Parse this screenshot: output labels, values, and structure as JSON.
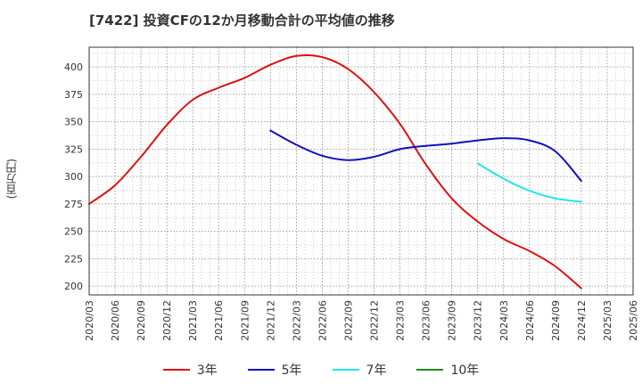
{
  "title": "[7422]  投資CFの12か月移動合計の平均値の推移",
  "y_unit": "(百万円)",
  "chart_data": {
    "type": "line",
    "title": "[7422]  投資CFの12か月移動合計の平均値の推移",
    "ylabel": "(百万円)",
    "xlabel": "",
    "ylim": [
      192,
      418
    ],
    "yticks": [
      200,
      225,
      250,
      275,
      300,
      325,
      350,
      375,
      400
    ],
    "x_ticks": [
      "2020/03",
      "2020/06",
      "2020/09",
      "2020/12",
      "2021/03",
      "2021/06",
      "2021/09",
      "2021/12",
      "2022/03",
      "2022/06",
      "2022/09",
      "2022/12",
      "2023/03",
      "2023/06",
      "2023/09",
      "2023/12",
      "2024/03",
      "2024/06",
      "2024/09",
      "2024/12",
      "2025/03",
      "2025/06"
    ],
    "grid": true,
    "legend_position": "bottom",
    "series": [
      {
        "name": "3年",
        "color": "#dd1111",
        "x": [
          "2020/03",
          "2020/06",
          "2020/09",
          "2020/12",
          "2021/03",
          "2021/06",
          "2021/09",
          "2021/12",
          "2022/03",
          "2022/06",
          "2022/09",
          "2022/12",
          "2023/03",
          "2023/06",
          "2023/09",
          "2023/12",
          "2024/03",
          "2024/06",
          "2024/09",
          "2024/12"
        ],
        "values": [
          275,
          292,
          318,
          347,
          370,
          381,
          390,
          402,
          410,
          409,
          398,
          377,
          348,
          311,
          280,
          259,
          243,
          232,
          218,
          198
        ]
      },
      {
        "name": "5年",
        "color": "#1111bb",
        "x": [
          "2021/12",
          "2022/03",
          "2022/06",
          "2022/09",
          "2022/12",
          "2023/03",
          "2023/06",
          "2023/09",
          "2023/12",
          "2024/03",
          "2024/06",
          "2024/09",
          "2024/12"
        ],
        "values": [
          342,
          329,
          319,
          315,
          318,
          325,
          328,
          330,
          333,
          335,
          333,
          323,
          296
        ]
      },
      {
        "name": "7年",
        "color": "#22e5e5",
        "x": [
          "2023/12",
          "2024/03",
          "2024/06",
          "2024/09",
          "2024/12"
        ],
        "values": [
          312,
          298,
          287,
          280,
          277
        ]
      },
      {
        "name": "10年",
        "color": "#228822",
        "x": [],
        "values": []
      }
    ]
  }
}
